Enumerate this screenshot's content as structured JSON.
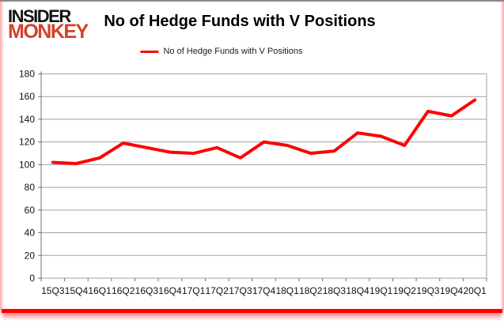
{
  "header": {
    "logo_line1": "INSIDER",
    "logo_line2": "MONKEY",
    "title": "No of Hedge Funds with V Positions"
  },
  "legend": {
    "label": "No of Hedge Funds with V Positions",
    "swatch_color": "#fe0202"
  },
  "chart_data": {
    "type": "line",
    "title": "No of Hedge Funds with V Positions",
    "categories": [
      "15Q3",
      "15Q4",
      "16Q1",
      "16Q2",
      "16Q3",
      "16Q4",
      "17Q1",
      "17Q2",
      "17Q3",
      "17Q4",
      "18Q1",
      "18Q2",
      "18Q3",
      "18Q4",
      "19Q1",
      "19Q2",
      "19Q3",
      "19Q4",
      "20Q1"
    ],
    "series": [
      {
        "name": "No of Hedge Funds with V Positions",
        "color": "#fe0202",
        "values": [
          102,
          101,
          106,
          119,
          115,
          111,
          110,
          115,
          106,
          120,
          117,
          110,
          112,
          128,
          125,
          117,
          147,
          143,
          157
        ]
      }
    ],
    "xlabel": "",
    "ylabel": "",
    "ylim": [
      0,
      180
    ],
    "ytick_step": 20,
    "grid": true,
    "legend_position": "top-center"
  },
  "colors": {
    "logo_black": "#141414",
    "logo_red": "#d2422a",
    "line_red": "#fe0202",
    "grid_gray": "#a0a0a0",
    "axis_gray": "#707070",
    "top_border_gray": "#8a8a8a",
    "frame_glow_red": "#fe0000",
    "text_color": "#111111"
  }
}
